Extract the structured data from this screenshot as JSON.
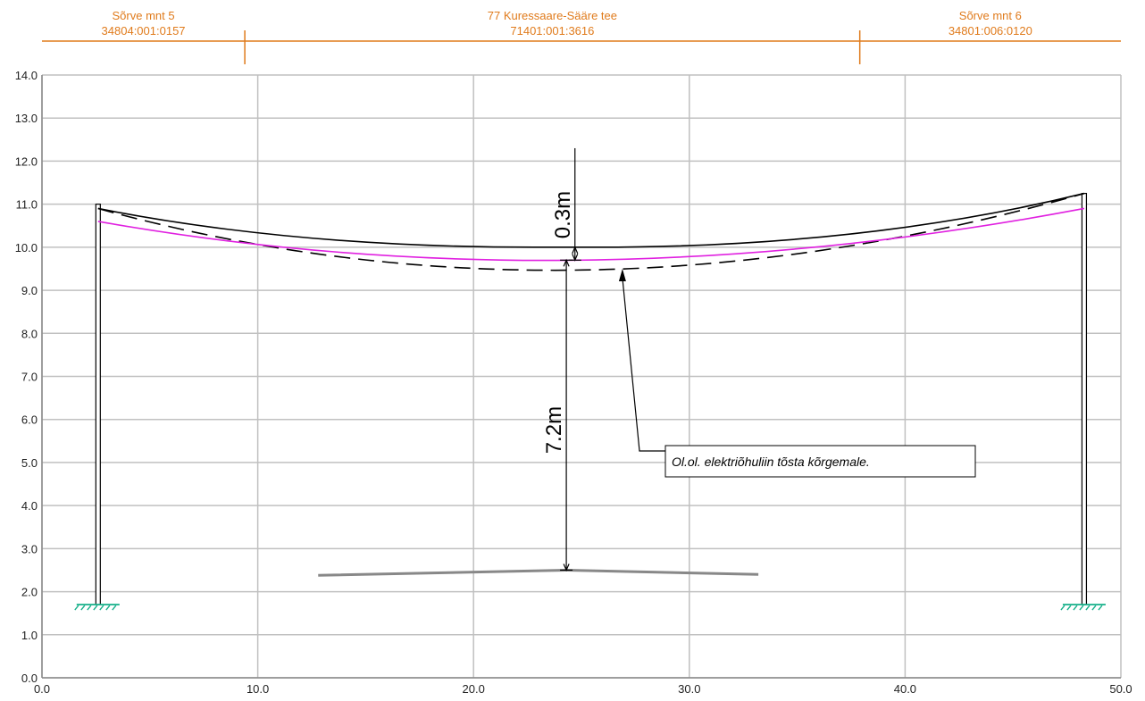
{
  "colors": {
    "grid": "#c0c0c0",
    "axis": "#888888",
    "parcel": "#e07b1c",
    "proposed": "#e020e0",
    "line": "#000000",
    "ground": "#888888",
    "hatch": "#16b08a"
  },
  "parcels": [
    {
      "name": "Sõrve mnt 5",
      "code": "34804:001:0157",
      "from": 0,
      "to": 9.4
    },
    {
      "name": "77 Kuressaare-Sääre tee",
      "code": "71401:001:3616",
      "from": 9.4,
      "to": 37.9
    },
    {
      "name": "Sõrve mnt 6",
      "code": "34801:006:0120",
      "from": 37.9,
      "to": 50
    }
  ],
  "chart_data": {
    "type": "line",
    "xlim": [
      0,
      50
    ],
    "ylim": [
      0,
      14
    ],
    "grid": true,
    "x_ticks": [
      "0.0",
      "10.0",
      "20.0",
      "30.0",
      "40.0",
      "50.0"
    ],
    "y_ticks": [
      "0.0",
      "1.0",
      "2.0",
      "3.0",
      "4.0",
      "5.0",
      "6.0",
      "7.0",
      "8.0",
      "9.0",
      "10.0",
      "11.0",
      "12.0",
      "13.0",
      "14.0"
    ],
    "poles": [
      {
        "x": 2.6,
        "base": 1.7,
        "top": 11.0
      },
      {
        "x": 48.3,
        "base": 1.7,
        "top": 11.25
      }
    ],
    "series": [
      {
        "style": "solid",
        "points": [
          [
            2.6,
            10.9
          ],
          [
            22.8,
            10.0
          ],
          [
            25.7,
            10.0
          ],
          [
            48.3,
            11.25
          ]
        ]
      },
      {
        "style": "dashed",
        "points": [
          [
            2.6,
            10.9
          ],
          [
            25.0,
            9.47
          ],
          [
            48.3,
            11.25
          ]
        ]
      },
      {
        "style": "magenta",
        "points": [
          [
            2.6,
            10.6
          ],
          [
            25.0,
            9.7
          ],
          [
            48.3,
            10.9
          ]
        ]
      }
    ],
    "ground": [
      [
        12.8,
        2.38
      ],
      [
        24.3,
        2.5
      ],
      [
        33.2,
        2.4
      ]
    ],
    "dimensions": [
      {
        "label": "0.3m",
        "x": 24.7,
        "from": 9.7,
        "to": 10.0
      },
      {
        "label": "7.2m",
        "x": 24.3,
        "from": 2.5,
        "to": 9.7
      }
    ],
    "annotation": {
      "text": "Ol.ol. elektriõhuliin tõsta kõrgemale.",
      "target": [
        26.9,
        9.5
      ]
    }
  }
}
